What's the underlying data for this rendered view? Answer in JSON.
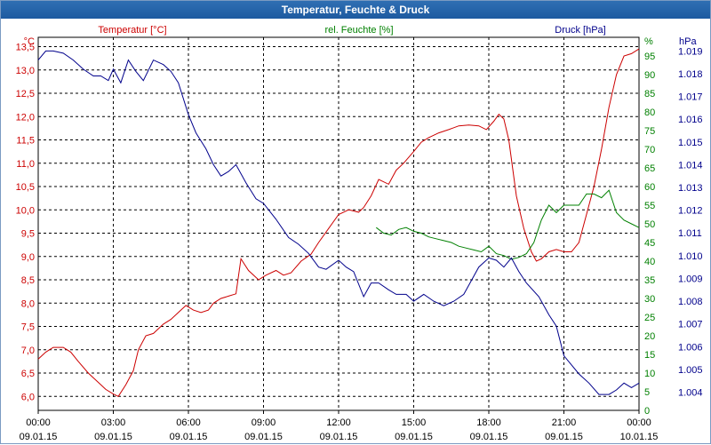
{
  "chart_data": {
    "type": "line",
    "title": "Temperatur, Feuchte & Druck",
    "x_ticks": [
      {
        "time": "00:00",
        "date": "09.01.15"
      },
      {
        "time": "03:00",
        "date": "09.01.15"
      },
      {
        "time": "06:00",
        "date": "09.01.15"
      },
      {
        "time": "09:00",
        "date": "09.01.15"
      },
      {
        "time": "12:00",
        "date": "09.01.15"
      },
      {
        "time": "15:00",
        "date": "09.01.15"
      },
      {
        "time": "18:00",
        "date": "09.01.15"
      },
      {
        "time": "21:00",
        "date": "09.01.15"
      },
      {
        "time": "00:00",
        "date": "10.01.15"
      }
    ],
    "xlim_hours": [
      0,
      24
    ],
    "axes": {
      "temperature": {
        "label": "Temperatur [°C]",
        "unit": "°C",
        "color": "#cc0000",
        "range": [
          5.7,
          13.7
        ],
        "ticks": [
          "6,0",
          "6,5",
          "7,0",
          "7,5",
          "8,0",
          "8,5",
          "9,0",
          "9,5",
          "10,0",
          "10,5",
          "11,0",
          "11,5",
          "12,0",
          "12,5",
          "13,0",
          "13,5"
        ]
      },
      "humidity": {
        "label": "rel. Feuchte [%]",
        "unit": "%",
        "color": "#008000",
        "range": [
          0,
          100
        ],
        "ticks": [
          "0",
          "5",
          "10",
          "15",
          "20",
          "25",
          "30",
          "35",
          "40",
          "45",
          "50",
          "55",
          "60",
          "65",
          "70",
          "75",
          "80",
          "85",
          "90",
          "95"
        ]
      },
      "pressure": {
        "label": "Druck [hPa]",
        "unit": "hPa",
        "color": "#00008b",
        "range": [
          1003.2,
          1019.6
        ],
        "ticks": [
          "1.004",
          "1.005",
          "1.006",
          "1.007",
          "1.008",
          "1.009",
          "1.010",
          "1.011",
          "1.012",
          "1.013",
          "1.014",
          "1.015",
          "1.016",
          "1.017",
          "1.018",
          "1.019"
        ]
      }
    },
    "series": [
      {
        "name": "Temperatur",
        "axis": "temperature",
        "color": "#cc0000",
        "x": [
          0,
          0.3,
          0.6,
          1.0,
          1.3,
          1.6,
          2.0,
          2.4,
          2.7,
          3.0,
          3.2,
          3.5,
          3.8,
          4.0,
          4.3,
          4.6,
          5.0,
          5.3,
          5.6,
          5.9,
          6.2,
          6.5,
          6.8,
          7.0,
          7.3,
          7.6,
          7.9,
          8.1,
          8.4,
          8.8,
          9.1,
          9.5,
          9.8,
          10.1,
          10.5,
          10.9,
          11.2,
          11.6,
          12.0,
          12.4,
          12.8,
          13.0,
          13.3,
          13.6,
          14.0,
          14.3,
          14.6,
          15.0,
          15.3,
          15.6,
          16.0,
          16.4,
          16.8,
          17.2,
          17.6,
          17.9,
          18.2,
          18.4,
          18.6,
          18.8,
          19.1,
          19.4,
          19.7,
          19.9,
          20.1,
          20.4,
          20.7,
          21.0,
          21.3,
          21.6,
          21.9,
          22.2,
          22.5,
          22.8,
          23.1,
          23.4,
          23.7,
          24.0
        ],
        "values": [
          6.8,
          6.95,
          7.05,
          7.05,
          6.95,
          6.75,
          6.5,
          6.3,
          6.15,
          6.05,
          6.0,
          6.25,
          6.55,
          7.0,
          7.3,
          7.35,
          7.55,
          7.65,
          7.8,
          7.95,
          7.85,
          7.8,
          7.85,
          8.0,
          8.1,
          8.15,
          8.2,
          8.95,
          8.7,
          8.5,
          8.6,
          8.7,
          8.6,
          8.65,
          8.9,
          9.05,
          9.3,
          9.6,
          9.9,
          10.0,
          9.95,
          10.05,
          10.3,
          10.65,
          10.55,
          10.85,
          11.0,
          11.25,
          11.45,
          11.55,
          11.65,
          11.72,
          11.8,
          11.82,
          11.8,
          11.72,
          11.9,
          12.05,
          11.95,
          11.5,
          10.3,
          9.6,
          9.1,
          8.9,
          8.95,
          9.1,
          9.15,
          9.1,
          9.1,
          9.3,
          9.9,
          10.5,
          11.3,
          12.2,
          12.9,
          13.3,
          13.35,
          13.45
        ]
      },
      {
        "name": "rel. Feuchte",
        "axis": "humidity",
        "color": "#008000",
        "x": [
          13.5,
          13.8,
          14.1,
          14.4,
          14.7,
          15.0,
          15.3,
          15.6,
          15.9,
          16.2,
          16.5,
          16.8,
          17.1,
          17.4,
          17.7,
          18.0,
          18.3,
          18.6,
          18.9,
          19.2,
          19.5,
          19.8,
          20.1,
          20.4,
          20.7,
          21.0,
          21.3,
          21.6,
          21.9,
          22.2,
          22.5,
          22.8,
          23.1,
          23.4,
          23.7,
          24.0
        ],
        "values": [
          49,
          47.5,
          47,
          48.5,
          49,
          48,
          47.5,
          46.5,
          46,
          45.5,
          45,
          44,
          43.5,
          43,
          42.5,
          44,
          42,
          41.5,
          40.5,
          41,
          42,
          45,
          51,
          55,
          53,
          55,
          55,
          55,
          58,
          58,
          57,
          59,
          53,
          51,
          50,
          49
        ]
      },
      {
        "name": "Druck",
        "axis": "pressure",
        "color": "#00008b",
        "x": [
          0,
          0.3,
          0.6,
          1.0,
          1.4,
          1.8,
          2.2,
          2.5,
          2.8,
          3.0,
          3.3,
          3.6,
          3.9,
          4.2,
          4.6,
          5.0,
          5.3,
          5.6,
          6.0,
          6.3,
          6.7,
          7.0,
          7.3,
          7.6,
          7.9,
          8.3,
          8.7,
          9.0,
          9.5,
          10.0,
          10.4,
          10.8,
          11.2,
          11.5,
          12.0,
          12.3,
          12.6,
          13.0,
          13.3,
          13.6,
          14.0,
          14.3,
          14.7,
          15.0,
          15.4,
          15.8,
          16.2,
          16.6,
          17.0,
          17.3,
          17.6,
          18.0,
          18.3,
          18.6,
          18.9,
          19.2,
          19.5,
          20.0,
          20.4,
          20.7,
          21.0,
          21.3,
          21.6,
          22.0,
          22.4,
          22.8,
          23.1,
          23.4,
          23.7,
          24.0
        ],
        "values": [
          1018.6,
          1019.0,
          1019.0,
          1018.9,
          1018.6,
          1018.2,
          1017.9,
          1017.9,
          1017.7,
          1018.2,
          1017.6,
          1018.6,
          1018.1,
          1017.7,
          1018.6,
          1018.4,
          1018.1,
          1017.6,
          1016.2,
          1015.4,
          1014.7,
          1014.0,
          1013.5,
          1013.7,
          1014.0,
          1013.2,
          1012.5,
          1012.3,
          1011.6,
          1010.8,
          1010.5,
          1010.1,
          1009.5,
          1009.4,
          1009.8,
          1009.5,
          1009.3,
          1008.2,
          1008.8,
          1008.8,
          1008.5,
          1008.3,
          1008.3,
          1008.0,
          1008.3,
          1008.0,
          1007.8,
          1008.0,
          1008.3,
          1008.9,
          1009.5,
          1009.9,
          1009.8,
          1009.5,
          1009.9,
          1009.3,
          1008.8,
          1008.2,
          1007.4,
          1006.9,
          1005.6,
          1005.2,
          1004.8,
          1004.4,
          1003.9,
          1003.9,
          1004.1,
          1004.4,
          1004.2,
          1004.4
        ]
      }
    ]
  }
}
